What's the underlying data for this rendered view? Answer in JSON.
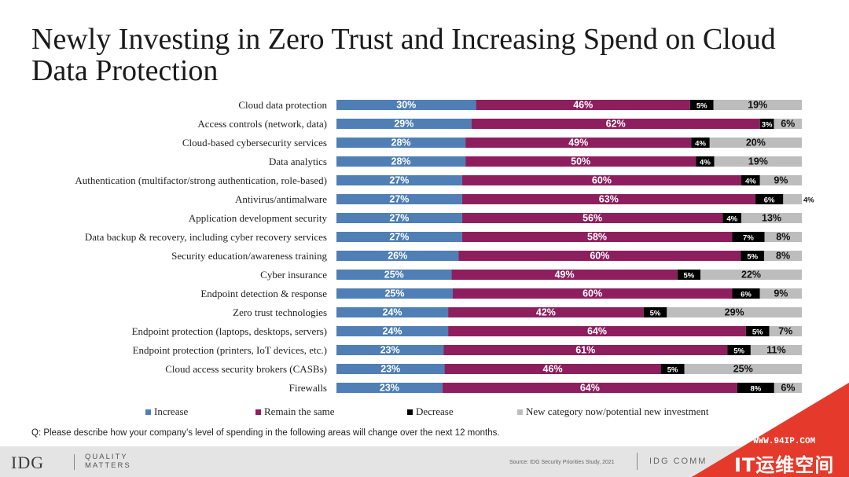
{
  "title": "Newly Investing in Zero Trust and Increasing Spend on Cloud Data Protection",
  "question": "Q:  Please describe how your company’s level of spending in the following areas will change over the next 12 months.",
  "footer": {
    "logo": "IDG",
    "tagline_line1": "QUALITY",
    "tagline_line2": "MATTERS",
    "source": "Source: IDG Security Priorities Study, 2021",
    "brand": "IDG COMM"
  },
  "watermark": {
    "url": "WWW.94IP.COM",
    "text": "IT运维空间"
  },
  "colors": {
    "increase": "#4f7fb5",
    "remain": "#8e1f5e",
    "decrease": "#000000",
    "new": "#bdbdbd"
  },
  "chart_data": {
    "type": "bar",
    "orientation": "horizontal",
    "stacked": true,
    "percent": true,
    "legend_position": "bottom",
    "categories": [
      "Cloud data protection",
      "Access controls (network, data)",
      "Cloud-based cybersecurity services",
      "Data analytics",
      "Authentication (multifactor/strong authentication, role-based)",
      "Antivirus/antimalware",
      "Application development security",
      "Data backup & recovery, including cyber recovery services",
      "Security education/awareness training",
      "Cyber insurance",
      "Endpoint detection & response",
      "Zero trust technologies",
      "Endpoint protection (laptops, desktops, servers)",
      "Endpoint protection (printers, IoT devices, etc.)",
      "Cloud access security brokers (CASBs)",
      "Firewalls"
    ],
    "series": [
      {
        "name": "Increase",
        "color": "#4f7fb5",
        "values": [
          30,
          29,
          28,
          28,
          27,
          27,
          27,
          27,
          26,
          25,
          25,
          24,
          24,
          23,
          23,
          23
        ]
      },
      {
        "name": "Remain the same",
        "color": "#8e1f5e",
        "values": [
          46,
          62,
          49,
          50,
          60,
          63,
          56,
          58,
          60,
          49,
          60,
          42,
          64,
          61,
          46,
          64
        ]
      },
      {
        "name": "Decrease",
        "color": "#000000",
        "values": [
          5,
          3,
          4,
          4,
          4,
          6,
          4,
          7,
          5,
          5,
          6,
          5,
          5,
          5,
          5,
          8
        ]
      },
      {
        "name": "New category now/potential new investment",
        "color": "#bdbdbd",
        "values": [
          19,
          6,
          20,
          19,
          9,
          4,
          13,
          8,
          8,
          22,
          9,
          29,
          7,
          11,
          25,
          6
        ]
      }
    ]
  }
}
